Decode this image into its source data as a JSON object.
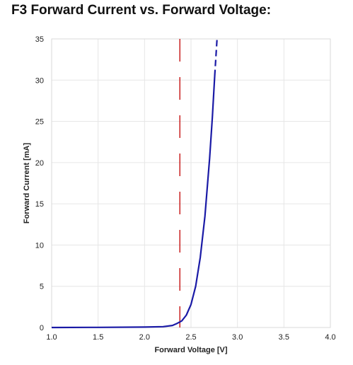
{
  "chart_data": {
    "type": "line",
    "title": "F3 Forward Current vs. Forward Voltage:",
    "xlabel": "Forward Voltage [V]",
    "ylabel": "Forward Current [mA]",
    "xlim": [
      1.0,
      4.0
    ],
    "ylim": [
      0,
      35
    ],
    "xticks": [
      "1.0",
      "1.5",
      "2.0",
      "2.5",
      "3.0",
      "3.5",
      "4.0"
    ],
    "yticks": [
      "0",
      "5",
      "10",
      "15",
      "20",
      "25",
      "30",
      "35"
    ],
    "grid": true,
    "series": [
      {
        "color": "#1a1aa6",
        "style": "solid",
        "points": [
          [
            1.0,
            0.0
          ],
          [
            1.5,
            0.02
          ],
          [
            2.0,
            0.05
          ],
          [
            2.2,
            0.1
          ],
          [
            2.3,
            0.25
          ],
          [
            2.35,
            0.5
          ],
          [
            2.4,
            0.8
          ],
          [
            2.45,
            1.5
          ],
          [
            2.5,
            2.8
          ],
          [
            2.55,
            5.0
          ],
          [
            2.6,
            8.5
          ],
          [
            2.65,
            13.5
          ],
          [
            2.7,
            20.5
          ],
          [
            2.73,
            25.5
          ],
          [
            2.755,
            30.5
          ]
        ]
      },
      {
        "color": "#1a1aa6",
        "style": "dashed",
        "points": [
          [
            2.755,
            30.5
          ],
          [
            2.78,
            35.0
          ]
        ]
      }
    ],
    "reference_lines": [
      {
        "orientation": "vertical",
        "x": 2.38,
        "color": "#c00000",
        "style": "dashed"
      }
    ]
  }
}
